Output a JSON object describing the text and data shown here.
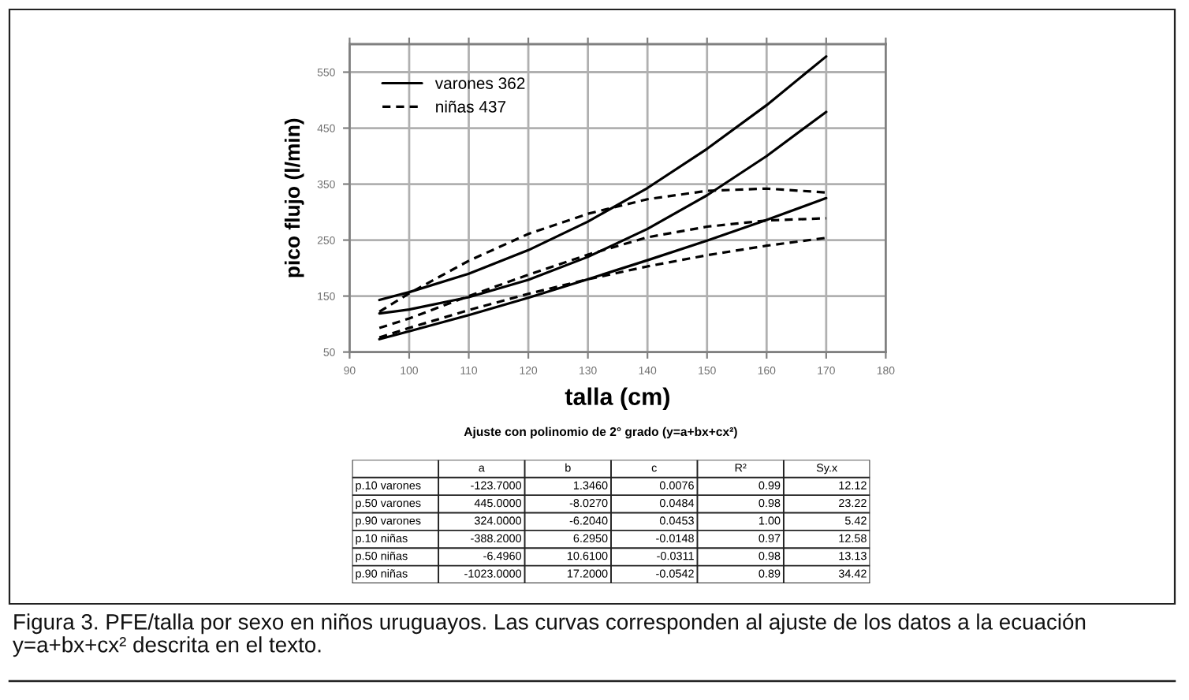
{
  "chart_data": [
    {
      "type": "line",
      "xlabel": "talla (cm)",
      "ylabel": "pico flujo (l/min)",
      "x": [
        95,
        100,
        110,
        120,
        130,
        140,
        150,
        160,
        170
      ],
      "series": [
        {
          "name": "varones 362",
          "color": "#000000",
          "line_style": "solid",
          "values": [
            73,
            87,
            116,
            147,
            180,
            214,
            249,
            286,
            325
          ]
        },
        {
          "color": "#000000",
          "line_style": "solid",
          "values": [
            119,
            126,
            148,
            179,
            220,
            270,
            330,
            400,
            479
          ]
        },
        {
          "color": "#000000",
          "line_style": "solid",
          "values": [
            143,
            157,
            190,
            232,
            283,
            343,
            413,
            491,
            578
          ]
        },
        {
          "name": "niñas 437",
          "color": "#000000",
          "line_style": "dashed",
          "values": [
            76,
            93,
            125,
            154,
            180,
            203,
            223,
            240,
            254
          ]
        },
        {
          "color": "#000000",
          "line_style": "dashed",
          "values": [
            93,
            110,
            150,
            188,
            224,
            255,
            274,
            285,
            289
          ]
        },
        {
          "color": "#000000",
          "line_style": "dashed",
          "values": [
            122,
            155,
            213,
            261,
            297,
            323,
            338,
            342,
            335
          ]
        }
      ],
      "xlim": [
        90,
        180
      ],
      "xticks": [
        90,
        100,
        110,
        120,
        130,
        140,
        150,
        160,
        170,
        180
      ],
      "ylim": [
        50,
        600
      ],
      "yticks": [
        50,
        150,
        250,
        350,
        450,
        550
      ],
      "grid": true,
      "legend": "top left",
      "annotations": [
        "Figura 3. PFE/talla por sexo en niños uruguayos. Las curvas corresponden al ajuste de los datos a la ecuación y=a+bx+cx² descrita en el texto."
      ]
    },
    {
      "type": "other",
      "title": "Ajuste con polinomio de 2° grado (y=a+bx+cx²)",
      "categories": [
        "a",
        "b",
        "c",
        "R²",
        "Sy.x"
      ],
      "y_categories": [
        "p.10 varones",
        "p.50 varones",
        "p.90 varones",
        "p.10 niñas",
        "p.50 niñas",
        "p.90 niñas"
      ],
      "cell_labels": [
        [
          "-123.7000",
          "1.3460",
          "0.0076",
          "0.99",
          "12.12"
        ],
        [
          "445.0000",
          "-8.0270",
          "0.0484",
          "0.98",
          "23.22"
        ],
        [
          "324.0000",
          "-6.2040",
          "0.0453",
          "1.00",
          "5.42"
        ],
        [
          "-388.2000",
          "6.2950",
          "-0.0148",
          "0.97",
          "12.58"
        ],
        [
          "-6.4960",
          "10.6100",
          "-0.0311",
          "0.98",
          "13.13"
        ],
        [
          "-1023.0000",
          "17.2000",
          "-0.0542",
          "0.89",
          "34.42"
        ]
      ]
    }
  ]
}
